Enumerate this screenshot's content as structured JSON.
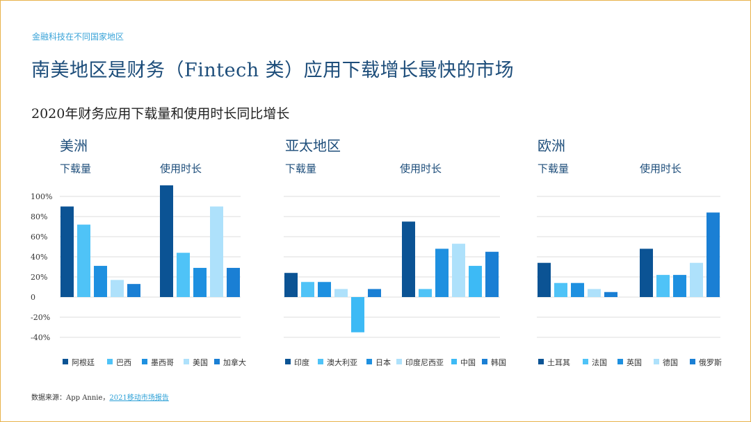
{
  "header": {
    "kicker": "金融科技在不同国家地区",
    "title": "南美地区是财务（Fintech 类）应用下载增长最快的市场",
    "subtitle": "2020年财务应用下载量和使用时长同比增长"
  },
  "metrics": {
    "downloads": "下载量",
    "usage": "使用时长"
  },
  "source": {
    "prefix": "数据来源：App Annie，",
    "link": "2021移动市场报告"
  },
  "chart_data": [
    {
      "type": "bar",
      "title": "美洲",
      "groups": [
        "下载量",
        "使用时长"
      ],
      "yticks": [
        "100%",
        "80%",
        "60%",
        "40%",
        "20%",
        "0",
        "-20%",
        "-40%"
      ],
      "ylim": [
        -45,
        110
      ],
      "series": [
        {
          "name": "阿根廷",
          "color": "#0b5394",
          "values": [
            90,
            111
          ]
        },
        {
          "name": "巴西",
          "color": "#4fc3f7",
          "values": [
            72,
            44
          ]
        },
        {
          "name": "墨西哥",
          "color": "#1e90e0",
          "values": [
            31,
            29
          ]
        },
        {
          "name": "美国",
          "color": "#aee1fb",
          "values": [
            17,
            90
          ]
        },
        {
          "name": "加拿大",
          "color": "#1a7fd4",
          "values": [
            13,
            29
          ]
        }
      ]
    },
    {
      "type": "bar",
      "title": "亚太地区",
      "groups": [
        "下载量",
        "使用时长"
      ],
      "ylim": [
        -45,
        110
      ],
      "series": [
        {
          "name": "印度",
          "color": "#0b5394",
          "values": [
            24,
            75
          ]
        },
        {
          "name": "澳大利亚",
          "color": "#4fc3f7",
          "values": [
            15,
            8
          ]
        },
        {
          "name": "日本",
          "color": "#1e90e0",
          "values": [
            15,
            48
          ]
        },
        {
          "name": "印度尼西亚",
          "color": "#aee1fb",
          "values": [
            8,
            53
          ]
        },
        {
          "name": "中国",
          "color": "#3dbaf5",
          "values": [
            -35,
            31
          ]
        },
        {
          "name": "韩国",
          "color": "#1a7fd4",
          "values": [
            8,
            45
          ]
        }
      ]
    },
    {
      "type": "bar",
      "title": "欧洲",
      "groups": [
        "下载量",
        "使用时长"
      ],
      "ylim": [
        -45,
        110
      ],
      "series": [
        {
          "name": "土耳其",
          "color": "#0b5394",
          "values": [
            34,
            48
          ]
        },
        {
          "name": "法国",
          "color": "#4fc3f7",
          "values": [
            14,
            22
          ]
        },
        {
          "name": "英国",
          "color": "#1e90e0",
          "values": [
            14,
            22
          ]
        },
        {
          "name": "德国",
          "color": "#aee1fb",
          "values": [
            8,
            34
          ]
        },
        {
          "name": "俄罗斯",
          "color": "#1a7fd4",
          "values": [
            5,
            84
          ]
        }
      ]
    }
  ]
}
